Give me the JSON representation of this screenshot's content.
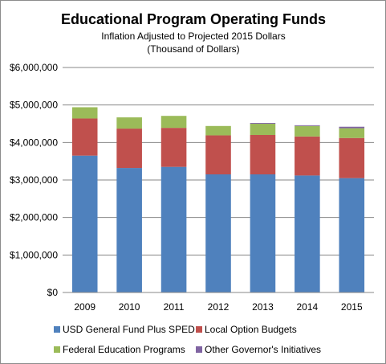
{
  "chart_data": {
    "type": "bar",
    "stacked": true,
    "title": "Educational Program Operating Funds",
    "subtitle_lines": [
      "Inflation Adjusted to Projected 2015 Dollars",
      "(Thousand of Dollars)"
    ],
    "xlabel": "",
    "ylabel": "",
    "categories": [
      "2009",
      "2010",
      "2011",
      "2012",
      "2013",
      "2014",
      "2015"
    ],
    "ylim": [
      0,
      6000000
    ],
    "yticks": [
      0,
      1000000,
      2000000,
      3000000,
      4000000,
      5000000,
      6000000
    ],
    "ytick_labels": [
      "$0",
      "$1,000,000",
      "$2,000,000",
      "$3,000,000",
      "$4,000,000",
      "$5,000,000",
      "$6,000,000"
    ],
    "grid": true,
    "legend_position": "bottom",
    "series": [
      {
        "name": "USD General Fund Plus SPED",
        "color": "#4f81bd",
        "values": [
          3650000,
          3320000,
          3350000,
          3150000,
          3150000,
          3120000,
          3050000
        ]
      },
      {
        "name": "Local Option Budgets",
        "color": "#c0504d",
        "values": [
          990000,
          1050000,
          1040000,
          1040000,
          1050000,
          1040000,
          1070000
        ]
      },
      {
        "name": "Federal Education Programs",
        "color": "#9bbb59",
        "values": [
          300000,
          300000,
          320000,
          250000,
          300000,
          280000,
          260000
        ]
      },
      {
        "name": "Other Governor's Initiatives",
        "color": "#8064a2",
        "values": [
          0,
          0,
          0,
          0,
          20000,
          20000,
          40000
        ]
      }
    ]
  }
}
